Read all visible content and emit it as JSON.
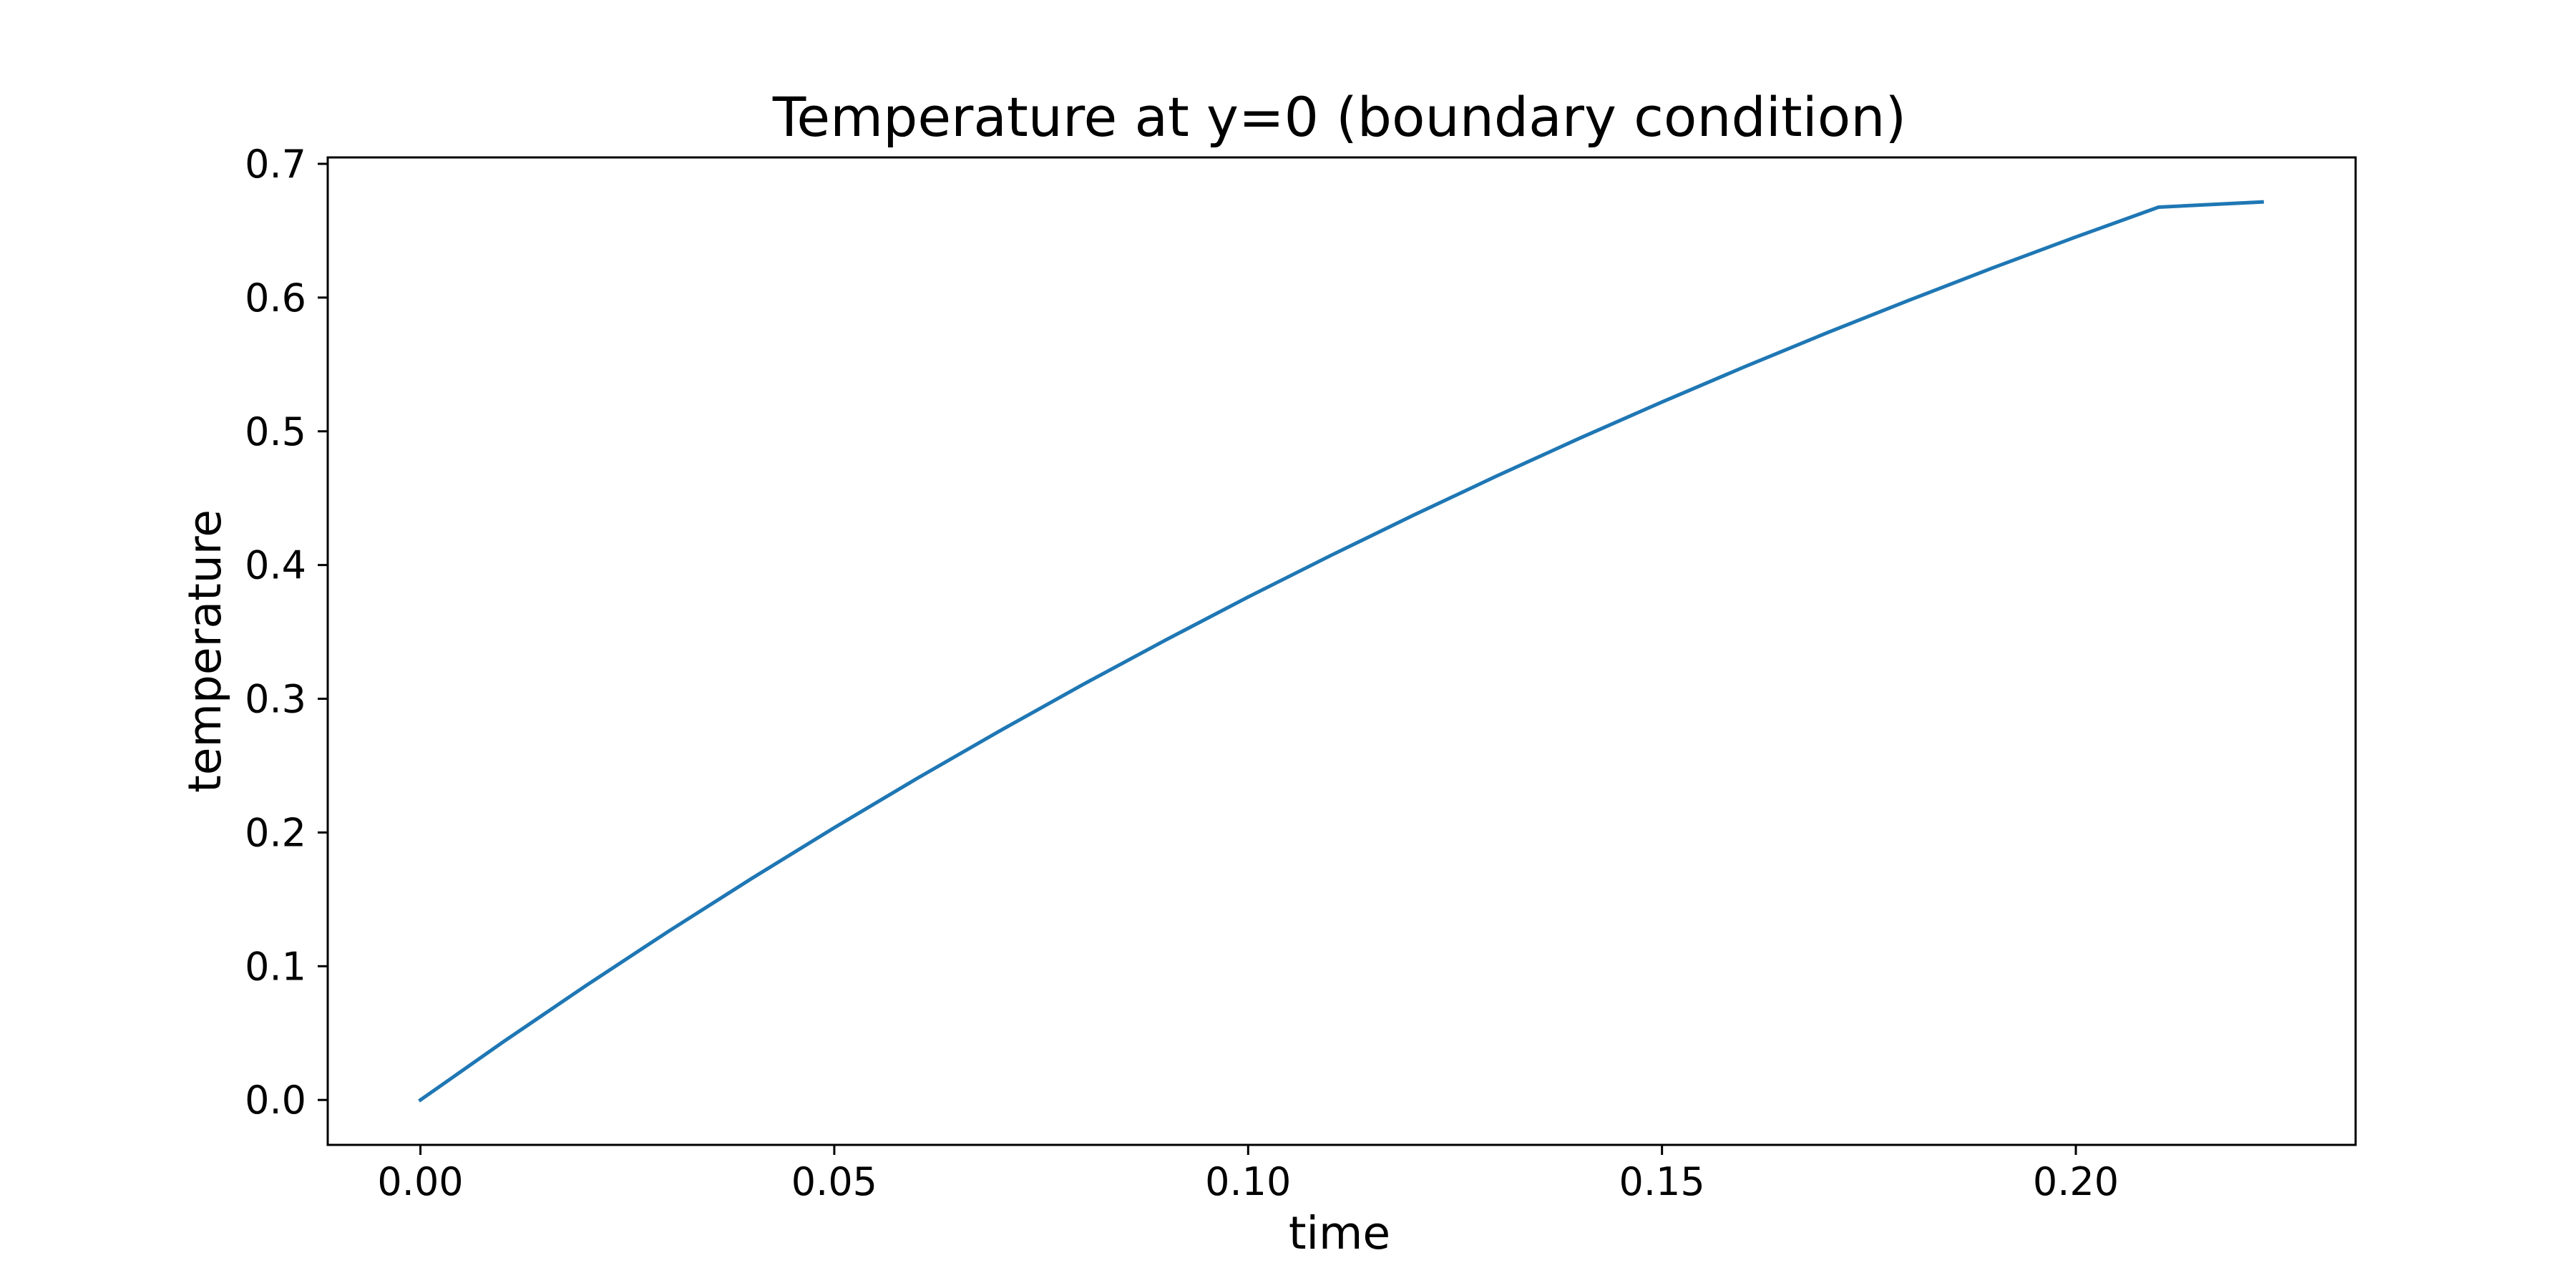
{
  "chart_data": {
    "type": "line",
    "title": "Temperature at y=0 (boundary condition)",
    "xlabel": "time",
    "ylabel": "temperature",
    "xlim": [
      -0.0112,
      0.2338
    ],
    "ylim": [
      -0.0336,
      0.7048
    ],
    "xticks": [
      0.0,
      0.05,
      0.1,
      0.15,
      0.2
    ],
    "xtick_labels": [
      "0.00",
      "0.05",
      "0.10",
      "0.15",
      "0.20"
    ],
    "yticks": [
      0.0,
      0.1,
      0.2,
      0.3,
      0.4,
      0.5,
      0.6,
      0.7
    ],
    "ytick_labels": [
      "0.0",
      "0.1",
      "0.2",
      "0.3",
      "0.4",
      "0.5",
      "0.6",
      "0.7"
    ],
    "grid": false,
    "series": [
      {
        "color": "#1f77b4",
        "x": [
          0.0,
          0.01,
          0.02,
          0.03,
          0.04,
          0.05,
          0.06,
          0.07,
          0.08,
          0.09,
          0.1,
          0.11,
          0.12,
          0.13,
          0.14,
          0.15,
          0.16,
          0.17,
          0.18,
          0.19,
          0.2,
          0.21,
          0.2225
        ],
        "y": [
          0.0,
          0.0434,
          0.0855,
          0.1262,
          0.1655,
          0.2036,
          0.2404,
          0.276,
          0.3105,
          0.3438,
          0.3761,
          0.4072,
          0.4373,
          0.4665,
          0.4947,
          0.5219,
          0.5483,
          0.5738,
          0.5984,
          0.6223,
          0.6453,
          0.6676,
          0.6715
        ]
      }
    ]
  }
}
